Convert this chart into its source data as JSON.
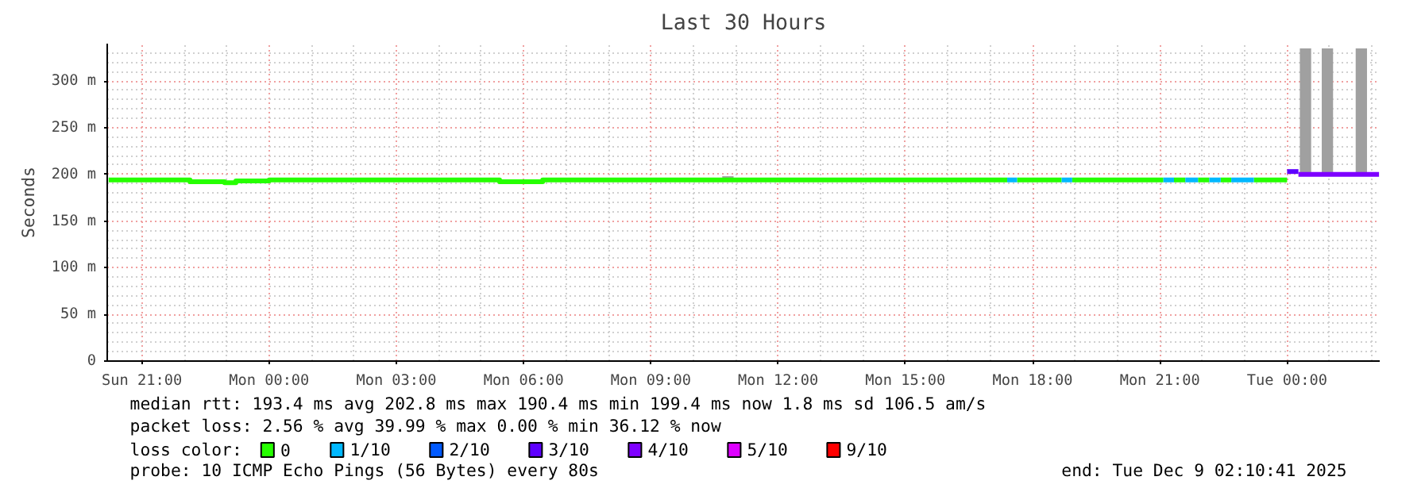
{
  "chart_data": {
    "type": "line",
    "title": "Last 30 Hours",
    "ylabel": "Seconds",
    "xlim": [
      "2025-12-07T20:11",
      "2025-12-09T02:11"
    ],
    "xticks": [
      {
        "value": "2025-12-07T21:00",
        "label": "Sun 21:00"
      },
      {
        "value": "2025-12-08T00:00",
        "label": "Mon 00:00"
      },
      {
        "value": "2025-12-08T03:00",
        "label": "Mon 03:00"
      },
      {
        "value": "2025-12-08T06:00",
        "label": "Mon 06:00"
      },
      {
        "value": "2025-12-08T09:00",
        "label": "Mon 09:00"
      },
      {
        "value": "2025-12-08T12:00",
        "label": "Mon 12:00"
      },
      {
        "value": "2025-12-08T15:00",
        "label": "Mon 15:00"
      },
      {
        "value": "2025-12-08T18:00",
        "label": "Mon 18:00"
      },
      {
        "value": "2025-12-08T21:00",
        "label": "Mon 21:00"
      },
      {
        "value": "2025-12-09T00:00",
        "label": "Tue 00:00"
      }
    ],
    "ylim": [
      0,
      340
    ],
    "yticks": [
      0,
      {
        "value": 50,
        "label": "50 m"
      },
      {
        "value": 100,
        "label": "100 m"
      },
      {
        "value": 150,
        "label": "150 m"
      },
      {
        "value": 200,
        "label": "200 m"
      },
      {
        "value": 250,
        "label": "250 m"
      },
      {
        "value": 300,
        "label": "300 m"
      }
    ],
    "grid": true,
    "legend": "bottom",
    "legend_title": "loss color:",
    "series": [
      {
        "type": "bar",
        "color": "#a0a0a0",
        "x": [
          "2025-12-08T10:49",
          "2025-12-09T00:26",
          "2025-12-09T00:57",
          "2025-12-09T01:45"
        ],
        "base": [
          195,
          200,
          200,
          200
        ],
        "values": [
          3,
          135,
          135,
          135
        ]
      },
      {
        "name": "0",
        "color": "#26ff00",
        "x": [
          "2025-12-07T20:13",
          "2025-12-07T22:08",
          "2025-12-07T22:08",
          "2025-12-07T22:57",
          "2025-12-07T22:57",
          "2025-12-07T23:13",
          "2025-12-07T23:13",
          "2025-12-08T00:00",
          "2025-12-08T00:00",
          "2025-12-08T05:26",
          "2025-12-08T05:26",
          "2025-12-08T06:27",
          "2025-12-08T06:27",
          "2025-12-08T17:24",
          "2025-12-08T17:30",
          "2025-12-08T17:38",
          "2025-12-08T18:41",
          "2025-12-08T18:48",
          "2025-12-08T18:56",
          "2025-12-08T21:05",
          "2025-12-08T21:12",
          "2025-12-08T21:20",
          "2025-12-08T21:36",
          "2025-12-08T21:45",
          "2025-12-08T21:54",
          "2025-12-08T22:10",
          "2025-12-08T22:18",
          "2025-12-08T22:26",
          "2025-12-08T22:41",
          "2025-12-08T22:57",
          "2025-12-08T23:13",
          "2025-12-09T00:00"
        ],
        "values": [
          194,
          194,
          192,
          192,
          191,
          191,
          193,
          193,
          194,
          194,
          192,
          192,
          194,
          194,
          null,
          194,
          194,
          null,
          194,
          194,
          null,
          194,
          194,
          null,
          194,
          194,
          null,
          194,
          194,
          null,
          194,
          194
        ]
      },
      {
        "name": "1/10",
        "color": "#00b8ff",
        "x": [
          "2025-12-08T17:24",
          "2025-12-08T17:38",
          "2025-12-08T18:00",
          "2025-12-08T18:41",
          "2025-12-08T18:56",
          "2025-12-08T20:00",
          "2025-12-08T21:05",
          "2025-12-08T21:20",
          "2025-12-08T21:28",
          "2025-12-08T21:36",
          "2025-12-08T21:54",
          "2025-12-08T22:02",
          "2025-12-08T22:10",
          "2025-12-08T22:26",
          "2025-12-08T22:33",
          "2025-12-08T22:41",
          "2025-12-08T23:13"
        ],
        "values": [
          194,
          194,
          null,
          194,
          194,
          null,
          194,
          194,
          null,
          194,
          194,
          null,
          194,
          194,
          null,
          194,
          194
        ]
      },
      {
        "name": "2/10",
        "color": "#0059ff"
      },
      {
        "name": "3/10",
        "color": "#5e00ff",
        "x": [
          "2025-12-09T00:00",
          "2025-12-09T00:16"
        ],
        "values": [
          203,
          203
        ]
      },
      {
        "name": "4/10",
        "color": "#7e00ff",
        "x": [
          "2025-12-09T00:16",
          "2025-12-09T02:10"
        ],
        "values": [
          200,
          200
        ]
      },
      {
        "name": "5/10",
        "color": "#dd00ff"
      },
      {
        "name": "9/10",
        "color": "#ff0000"
      }
    ],
    "annotations": [
      "median rtt:  193.4 ms avg  202.8 ms max  190.4 ms min  199.4 ms now  1.8 ms sd  106.5   am/s",
      "packet loss: 2.56 % avg  39.99 % max  0.00 % min  36.12 % now",
      "probe:       10 ICMP Echo Pings (56 Bytes) every 80s",
      "end: Tue Dec  9 02:10:41 2025"
    ]
  }
}
